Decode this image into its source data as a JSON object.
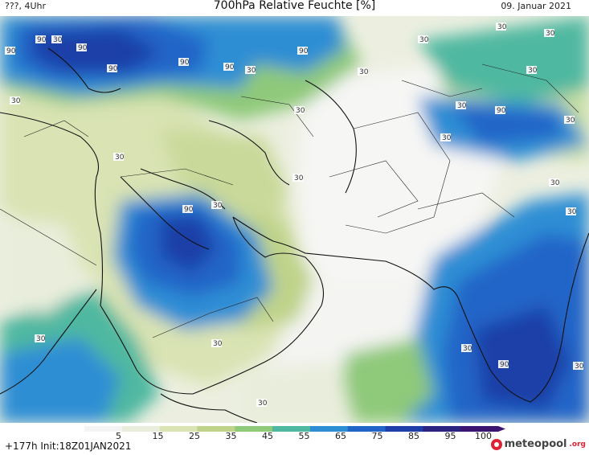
{
  "header": {
    "left": "???, 4Uhr",
    "title": "700hPa Relative Feuchte [%]",
    "right": "09. Januar 2021"
  },
  "footer": {
    "run": "+177h  Init:18Z01JAN2021",
    "logo_main": "meteopool",
    "logo_suffix": ".org"
  },
  "legend": {
    "ticks": [
      "5",
      "15",
      "25",
      "35",
      "45",
      "55",
      "65",
      "75",
      "85",
      "95",
      "100"
    ],
    "colors": [
      "#f4f4f4",
      "#e9eedc",
      "#d9e3b3",
      "#bfd38a",
      "#8fc97a",
      "#4fb8a0",
      "#2d8ed4",
      "#2265c8",
      "#1f3fa8",
      "#2a2480",
      "#3b1470"
    ]
  },
  "contour_labels": [
    "90",
    "30",
    "90",
    "90",
    "90",
    "90",
    "30",
    "90",
    "30",
    "30",
    "30",
    "90",
    "30",
    "30",
    "30",
    "30",
    "30",
    "90",
    "30",
    "30",
    "30",
    "90",
    "30",
    "30",
    "30",
    "30",
    "30",
    "30",
    "30",
    "30",
    "30",
    "90"
  ]
}
